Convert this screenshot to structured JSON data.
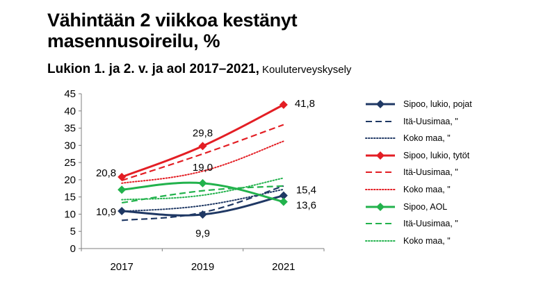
{
  "header": {
    "title": "Vähintään 2 viikkoa kestänyt masennusoireilu, %",
    "subtitle_main": "Lukion 1. ja 2. v. ja aol 2017–2021,",
    "subtitle_source": " Kouluterveyskysely"
  },
  "chart_data": {
    "type": "line",
    "title": "Vähintään 2 viikkoa kestänyt masennusoireilu, %",
    "subtitle": "Lukion 1. ja 2. v. ja aol 2017–2021, Kouluterveyskysely",
    "x": [
      "2017",
      "2019",
      "2021"
    ],
    "ylim": [
      0,
      45
    ],
    "yticks": [
      0,
      5,
      10,
      15,
      20,
      25,
      30,
      35,
      40,
      45
    ],
    "grid": false,
    "legend": "right",
    "series": [
      {
        "name": "Sipoo, lukio, pojat",
        "values": [
          10.9,
          9.9,
          15.4
        ],
        "color": "#1f3864",
        "dash": "solid",
        "marker": "diamond",
        "labels": [
          "10,9",
          "9,9",
          "15,4"
        ]
      },
      {
        "name": "Itä-Uusimaa, \"",
        "values": [
          8.2,
          10.5,
          18.2
        ],
        "color": "#1f3864",
        "dash": "dashed",
        "marker": "none"
      },
      {
        "name": "Koko maa, \"",
        "values": [
          10.8,
          12.5,
          17.2
        ],
        "color": "#1f3864",
        "dash": "dotted",
        "marker": "none"
      },
      {
        "name": "Sipoo, lukio, tytöt",
        "values": [
          20.8,
          29.8,
          41.8
        ],
        "color": "#e31e24",
        "dash": "solid",
        "marker": "diamond",
        "labels": [
          "20,8",
          "29,8",
          "41,8"
        ]
      },
      {
        "name": "Itä-Uusimaa, \"",
        "values": [
          19.8,
          27.5,
          36.0
        ],
        "color": "#e31e24",
        "dash": "dashed",
        "marker": "none"
      },
      {
        "name": "Koko maa, \"",
        "values": [
          19.0,
          22.5,
          31.2
        ],
        "color": "#e31e24",
        "dash": "dotted",
        "marker": "none"
      },
      {
        "name": "Sipoo, AOL",
        "values": [
          17.1,
          19.0,
          13.6
        ],
        "color": "#22b24c",
        "dash": "solid",
        "marker": "diamond",
        "labels": [
          "",
          "19,0",
          "13,6"
        ]
      },
      {
        "name": "Itä-Uusimaa, \"",
        "values": [
          13.3,
          16.8,
          18.2
        ],
        "color": "#22b24c",
        "dash": "dashed",
        "marker": "none"
      },
      {
        "name": "Koko maa, \"",
        "values": [
          14.2,
          15.5,
          20.5
        ],
        "color": "#22b24c",
        "dash": "dotted",
        "marker": "none"
      }
    ]
  }
}
